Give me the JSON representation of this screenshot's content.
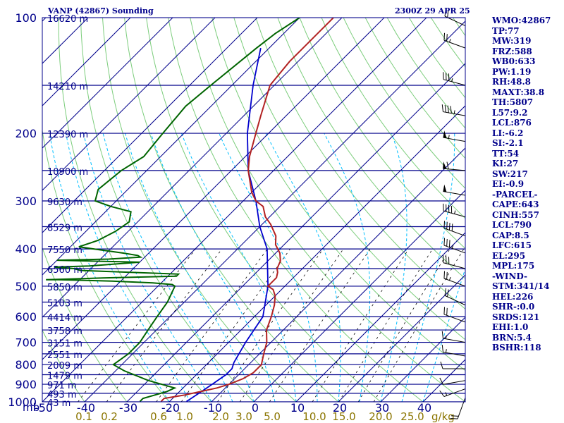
{
  "header": {
    "title": "VANP (42867) Sounding",
    "timestamp": "2300Z 29 APR 25"
  },
  "stats": [
    "WMO:42867",
    "TP:77",
    "MW:319",
    "FRZ:588",
    "WB0:633",
    "PW:1.19",
    "RH:48.8",
    "MAXT:38.8",
    "TH:5807",
    "L57:9.2",
    "LCL:876",
    "LI:-6.2",
    "SI:-2.1",
    "TT:54",
    "KI:27",
    "SW:217",
    "EI:-0.9",
    "-PARCEL-",
    "CAPE:643",
    "CINH:557",
    "LCL:790",
    "CAP:8.5",
    "LFC:615",
    "EL:295",
    "MPL:175",
    "-WIND-",
    "STM:341/14",
    "HEL:226",
    "SHR-:0.0",
    "SRDS:121",
    "EHI:1.0",
    "BRN:5.4",
    "BSHR:118"
  ],
  "colors": {
    "isobar": "#00008b",
    "isotherm": "#00008b",
    "dry_adiabat": "#7ccd7c",
    "moist_adiabat": "#00bfff",
    "mixing_ratio": "#000000",
    "temperature": "#b22222",
    "dewpoint": "#006400",
    "parcel": "#0000cd",
    "wind": "#000000"
  },
  "chart_data": {
    "type": "skew-t",
    "pressure_unit": "mb",
    "mixing_ratio_unit": "g/kg",
    "pressure_levels": [
      {
        "p": 100,
        "label": "100",
        "height": "16620 m"
      },
      {
        "p": 150,
        "label": "",
        "height": "14210 m"
      },
      {
        "p": 200,
        "label": "200",
        "height": "12390 m"
      },
      {
        "p": 250,
        "label": "",
        "height": "10900 m"
      },
      {
        "p": 300,
        "label": "300",
        "height": "9630 m"
      },
      {
        "p": 350,
        "label": "",
        "height": "8529 m"
      },
      {
        "p": 400,
        "label": "400",
        "height": "7550 m"
      },
      {
        "p": 450,
        "label": "",
        "height": "6560 m"
      },
      {
        "p": 500,
        "label": "500",
        "height": "5850 m"
      },
      {
        "p": 550,
        "label": "",
        "height": "5103 m"
      },
      {
        "p": 600,
        "label": "600",
        "height": "4414 m"
      },
      {
        "p": 650,
        "label": "",
        "height": "3758 m"
      },
      {
        "p": 700,
        "label": "700",
        "height": "3151 m"
      },
      {
        "p": 750,
        "label": "",
        "height": "2551 m"
      },
      {
        "p": 800,
        "label": "800",
        "height": "2009 m"
      },
      {
        "p": 850,
        "label": "",
        "height": "1479 m"
      },
      {
        "p": 900,
        "label": "900",
        "height": "971 m"
      },
      {
        "p": 950,
        "label": "",
        "height": "493 m"
      },
      {
        "p": 1000,
        "label": "1000",
        "height": "43 m"
      }
    ],
    "temperature_ticks": [
      "-50",
      "-40",
      "-30",
      "-20",
      "-10",
      "0",
      "10",
      "20",
      "30",
      "40"
    ],
    "mixing_ratio_ticks": [
      "0.1",
      "0.2",
      "0.6",
      "1.0",
      "2.0",
      "3.0",
      "5.0",
      "10.0",
      "15.0",
      "20.0",
      "25.0"
    ],
    "skew_deg_per_10mb": 0,
    "temperature": [
      [
        998,
        -22
      ],
      [
        980,
        -22
      ],
      [
        960,
        -18
      ],
      [
        940,
        -15
      ],
      [
        920,
        -12
      ],
      [
        900,
        -10
      ],
      [
        870,
        -8
      ],
      [
        840,
        -7
      ],
      [
        800,
        -7
      ],
      [
        750,
        -9
      ],
      [
        700,
        -11
      ],
      [
        650,
        -14
      ],
      [
        600,
        -16
      ],
      [
        560,
        -18
      ],
      [
        530,
        -20
      ],
      [
        510,
        -22
      ],
      [
        500,
        -24
      ],
      [
        490,
        -24
      ],
      [
        475,
        -24
      ],
      [
        460,
        -25
      ],
      [
        450,
        -26
      ],
      [
        430,
        -27
      ],
      [
        410,
        -29
      ],
      [
        390,
        -32
      ],
      [
        370,
        -34
      ],
      [
        345,
        -38
      ],
      [
        330,
        -41
      ],
      [
        310,
        -44
      ],
      [
        300,
        -47
      ],
      [
        285,
        -50
      ],
      [
        250,
        -56
      ],
      [
        230,
        -59
      ],
      [
        200,
        -63
      ],
      [
        180,
        -66
      ],
      [
        150,
        -71
      ],
      [
        130,
        -72
      ],
      [
        120,
        -72
      ],
      [
        110,
        -72
      ],
      [
        100,
        -72
      ]
    ],
    "dewpoint": [
      [
        998,
        -27
      ],
      [
        980,
        -27
      ],
      [
        960,
        -25
      ],
      [
        940,
        -23
      ],
      [
        920,
        -22
      ],
      [
        880,
        -30
      ],
      [
        830,
        -38
      ],
      [
        800,
        -42
      ],
      [
        750,
        -41
      ],
      [
        700,
        -41
      ],
      [
        650,
        -42
      ],
      [
        600,
        -43
      ],
      [
        550,
        -44
      ],
      [
        500,
        -46
      ],
      [
        495,
        -47
      ],
      [
        490,
        -52
      ],
      [
        485,
        -62
      ],
      [
        481,
        -75
      ],
      [
        481,
        -78
      ],
      [
        476,
        -65
      ],
      [
        471,
        -48
      ],
      [
        465,
        -48
      ],
      [
        455,
        -72
      ],
      [
        450,
        -74
      ],
      [
        446,
        -79
      ],
      [
        443,
        -71
      ],
      [
        433,
        -60
      ],
      [
        428,
        -80
      ],
      [
        425,
        -68
      ],
      [
        420,
        -61
      ],
      [
        416,
        -62
      ],
      [
        410,
        -66
      ],
      [
        400,
        -74
      ],
      [
        395,
        -78
      ],
      [
        380,
        -75
      ],
      [
        360,
        -73
      ],
      [
        340,
        -72
      ],
      [
        320,
        -74
      ],
      [
        310,
        -80
      ],
      [
        300,
        -85
      ],
      [
        280,
        -87
      ],
      [
        250,
        -86
      ],
      [
        230,
        -84
      ],
      [
        200,
        -85
      ],
      [
        170,
        -86
      ],
      [
        150,
        -85
      ],
      [
        120,
        -83
      ],
      [
        110,
        -82
      ],
      [
        100,
        -80
      ]
    ],
    "parcel": [
      [
        998,
        -16
      ],
      [
        950,
        -15
      ],
      [
        900,
        -14
      ],
      [
        850,
        -13
      ],
      [
        820,
        -13
      ],
      [
        790,
        -14
      ],
      [
        700,
        -16
      ],
      [
        600,
        -18
      ],
      [
        500,
        -24
      ],
      [
        400,
        -33
      ],
      [
        350,
        -40
      ],
      [
        300,
        -47
      ],
      [
        250,
        -56
      ],
      [
        200,
        -65
      ],
      [
        150,
        -75
      ],
      [
        120,
        -82
      ]
    ],
    "wind_barbs": [
      {
        "p": 975,
        "dir": 200,
        "spd": 20
      },
      {
        "p": 925,
        "dir": 250,
        "spd": 15
      },
      {
        "p": 880,
        "dir": 260,
        "spd": 10
      },
      {
        "p": 820,
        "dir": 270,
        "spd": 10
      },
      {
        "p": 760,
        "dir": 280,
        "spd": 15
      },
      {
        "p": 700,
        "dir": 280,
        "spd": 15
      },
      {
        "p": 620,
        "dir": 290,
        "spd": 20
      },
      {
        "p": 560,
        "dir": 295,
        "spd": 20
      },
      {
        "p": 500,
        "dir": 290,
        "spd": 25
      },
      {
        "p": 450,
        "dir": 285,
        "spd": 30
      },
      {
        "p": 410,
        "dir": 290,
        "spd": 35
      },
      {
        "p": 370,
        "dir": 290,
        "spd": 40
      },
      {
        "p": 330,
        "dir": 285,
        "spd": 45
      },
      {
        "p": 290,
        "dir": 280,
        "spd": 50
      },
      {
        "p": 250,
        "dir": 275,
        "spd": 60
      },
      {
        "p": 210,
        "dir": 280,
        "spd": 55
      },
      {
        "p": 180,
        "dir": 280,
        "spd": 45
      },
      {
        "p": 150,
        "dir": 285,
        "spd": 35
      },
      {
        "p": 120,
        "dir": 290,
        "spd": 25
      },
      {
        "p": 105,
        "dir": 295,
        "spd": 20
      }
    ]
  }
}
